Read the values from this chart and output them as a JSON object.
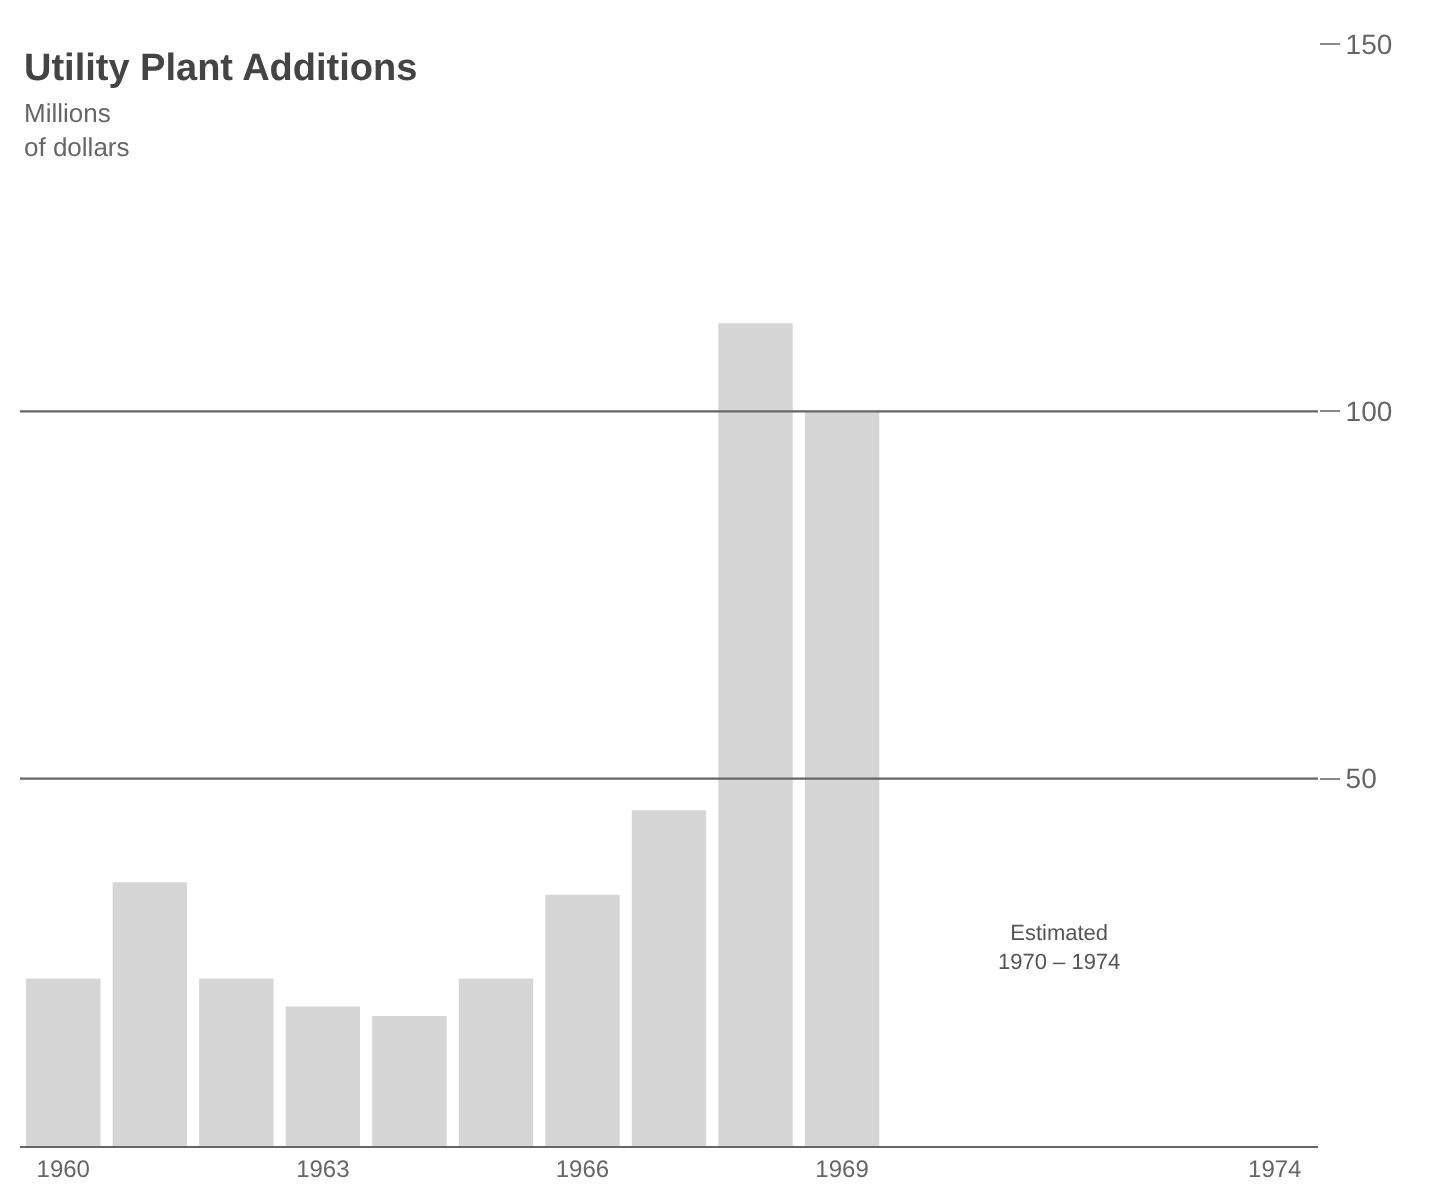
{
  "chart_data": {
    "type": "bar",
    "title": "Utility Plant Additions",
    "subtitle": "Millions\nof dollars",
    "categories": [
      "1960",
      null,
      null,
      "1963",
      null,
      null,
      "1966",
      null,
      null,
      "1969",
      null,
      null,
      null,
      null,
      "1974"
    ],
    "values": [
      22.8,
      35.9,
      22.8,
      19.0,
      17.7,
      22.8,
      34.2,
      45.7,
      112,
      100,
      null,
      null,
      null,
      null,
      null
    ],
    "color": "#d6d6d6",
    "ylim": [
      0,
      150
    ],
    "yticks": [
      {
        "value": 50,
        "label": "50"
      },
      {
        "value": 100,
        "label": "100"
      },
      {
        "value": 150,
        "label": "150"
      }
    ],
    "grid": "y",
    "annotations": [
      "Estimated\n1970 – 1974"
    ]
  }
}
